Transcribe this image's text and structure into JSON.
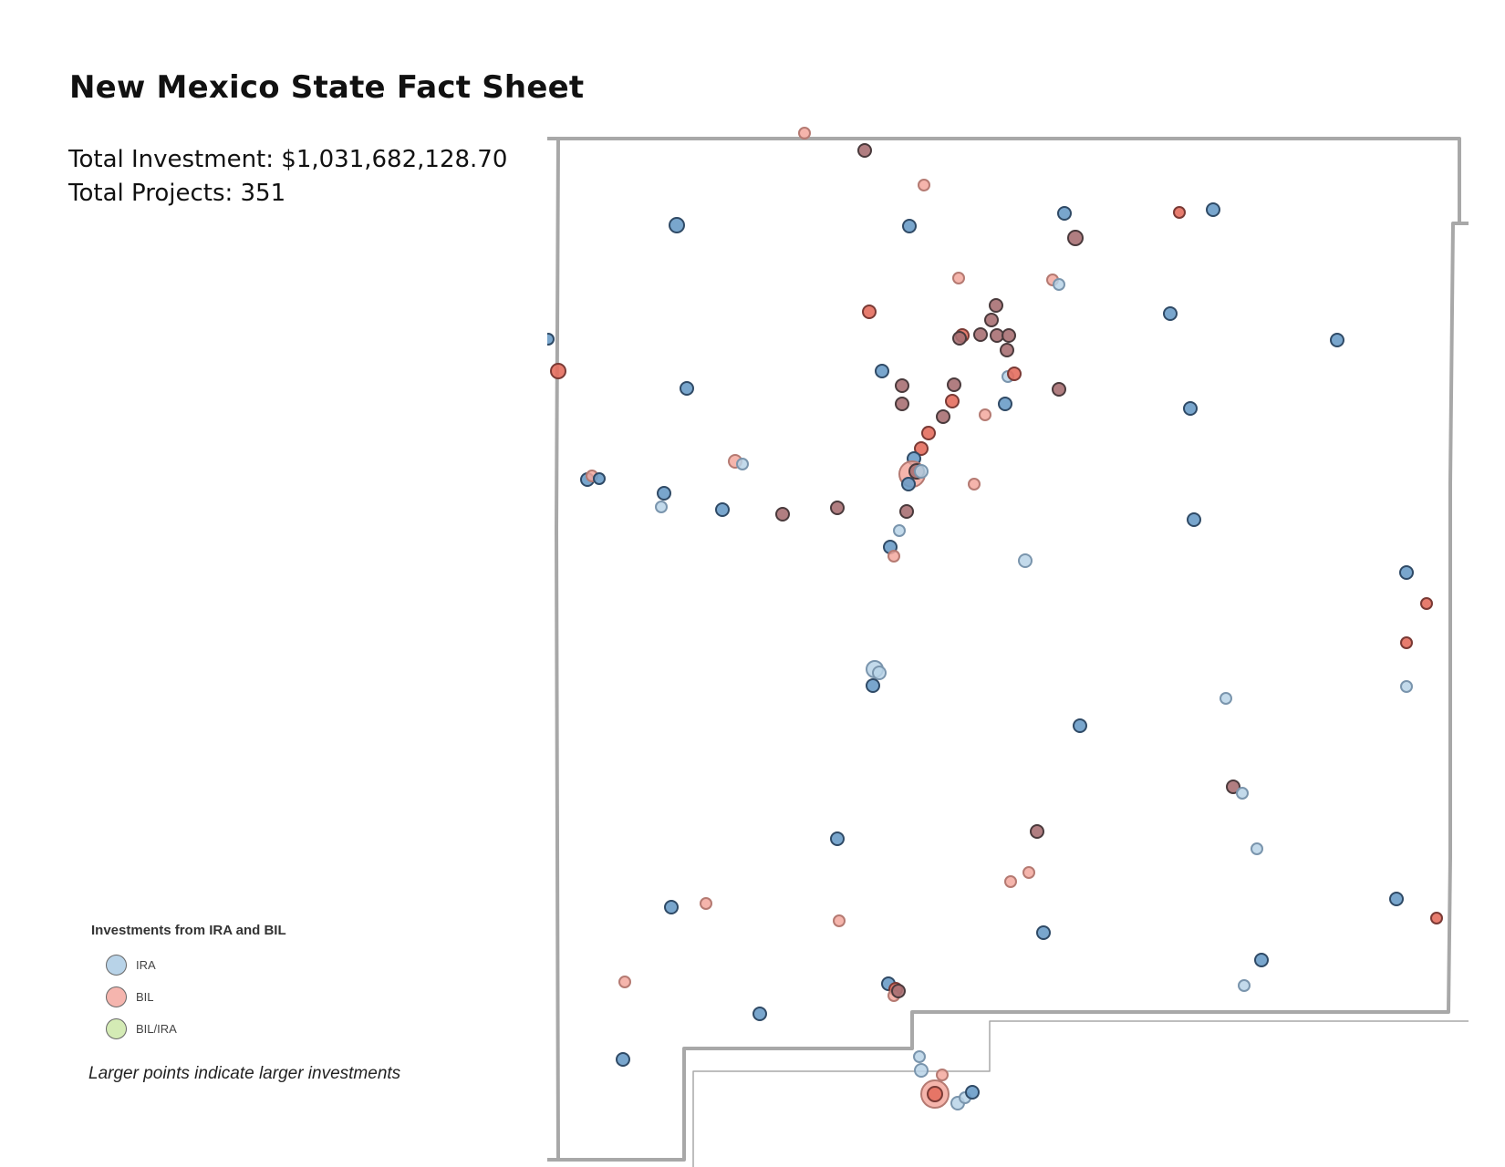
{
  "page": {
    "title": "New Mexico State Fact Sheet",
    "total_investment": "Total Investment: $1,031,682,128.70",
    "total_projects": "Total Projects: 351"
  },
  "legend": {
    "title": "Investments from IRA and BIL",
    "items": [
      {
        "label": "IRA",
        "color": "#b8d3e8"
      },
      {
        "label": "BIL",
        "color": "#f5b5ae"
      },
      {
        "label": "BIL/IRA",
        "color": "#d4ebb5"
      }
    ],
    "note": "Larger points indicate larger investments"
  },
  "colors": {
    "border": "#a8a8a8",
    "ira_fill": "#6a9cc8",
    "ira_light": "#b8d3e8",
    "bil_fill": "#e46e5e",
    "bil_light": "#f3a89e",
    "mixed_fill": "#a97073"
  }
}
